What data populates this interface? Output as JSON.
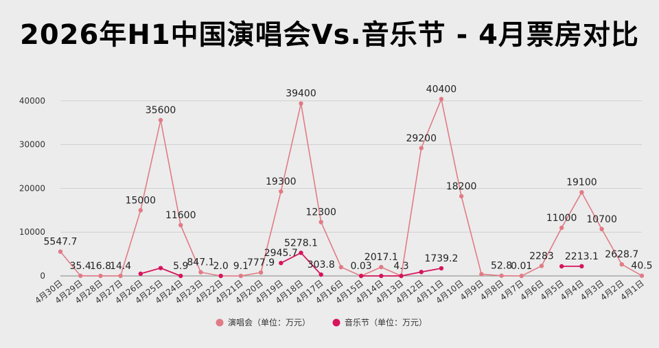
{
  "chart_data": {
    "type": "line",
    "title": "2026年H1中国演唱会Vs.音乐节 - 4月票房对比",
    "categories": [
      "4月30日",
      "4月29日",
      "4月28日",
      "4月27日",
      "4月26日",
      "4月25日",
      "4月24日",
      "4月23日",
      "4月22日",
      "4月21日",
      "4月20日",
      "4月19日",
      "4月18日",
      "4月17日",
      "4月16日",
      "4月15日",
      "4月14日",
      "4月13日",
      "4月12日",
      "4月11日",
      "4月10日",
      "4月9日",
      "4月8日",
      "4月7日",
      "4月6日",
      "4月5日",
      "4月4日",
      "4月3日",
      "4月2日",
      "4月1日"
    ],
    "ylim": [
      0,
      45000
    ],
    "yticks": [
      0,
      10000,
      20000,
      30000,
      40000
    ],
    "grid": true,
    "legend_position": "bottom",
    "series": [
      {
        "name": "演唱会（单位：万元）",
        "color": "#e07b86",
        "values": [
          5547.7,
          35.4,
          16.8,
          14.4,
          15000,
          35600,
          11600,
          847.1,
          2.0,
          9.1,
          777.9,
          19300,
          39400,
          12300,
          2000,
          0.03,
          2017.1,
          4.3,
          29200,
          40400,
          18200,
          400,
          52.8,
          0.01,
          2283,
          11000,
          19100,
          10700,
          2628.7,
          40.5
        ],
        "labels": [
          "5547.7",
          "35.4",
          "16.8",
          "14.4",
          "15000",
          "35600",
          "11600",
          "847.1",
          "2.0",
          "9.1",
          "777.9",
          "19300",
          "39400",
          "12300",
          "",
          "0.03",
          "2017.1",
          "4.3",
          "29200",
          "40400",
          "18200",
          "",
          "52.8",
          "0.01",
          "2283",
          "11000",
          "19100",
          "10700",
          "2628.7",
          "40.5"
        ]
      },
      {
        "name": "音乐节（单位：万元）",
        "color": "#d6155a",
        "values": [
          null,
          null,
          null,
          null,
          500,
          1800,
          5.9,
          null,
          2.0,
          null,
          null,
          2945.7,
          5278.1,
          303.8,
          null,
          0.03,
          3.2,
          4.3,
          900,
          1739.2,
          null,
          null,
          null,
          null,
          null,
          2200,
          2213.1,
          null,
          null,
          null
        ],
        "labels": [
          "",
          "",
          "",
          "",
          "",
          "",
          "5.9",
          "",
          "",
          "",
          "",
          "2945.7",
          "5278.1",
          "303.8",
          "",
          "",
          "",
          "",
          "",
          "1739.2",
          "",
          "",
          "",
          "",
          "",
          "",
          "2213.1",
          "",
          "",
          ""
        ]
      }
    ]
  }
}
